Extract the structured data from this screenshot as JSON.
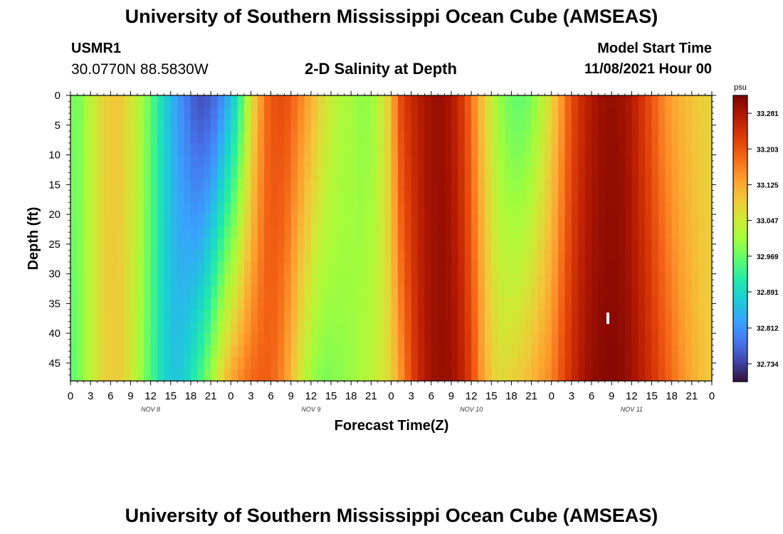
{
  "page": {
    "title": "University of Southern Mississippi Ocean Cube (AMSEAS)",
    "footer_title": "University of Southern Mississippi Ocean Cube (AMSEAS)",
    "station_id": "USMR1",
    "station_coords": "30.0770N  88.5830W",
    "chart_subtitle": "2-D Salinity at Depth",
    "model_start_label": "Model Start Time",
    "model_start_value": "11/08/2021 Hour 00"
  },
  "chart_data": {
    "type": "heatmap",
    "title": "2-D Salinity at Depth",
    "xlabel": "Forecast Time(Z)",
    "ylabel": "Depth (ft)",
    "x_range_hours": [
      0,
      96
    ],
    "ylim": [
      48,
      0
    ],
    "x_ticks": [
      "0",
      "3",
      "6",
      "9",
      "12",
      "15",
      "18",
      "21",
      "0",
      "3",
      "6",
      "9",
      "12",
      "15",
      "18",
      "21",
      "0",
      "3",
      "6",
      "9",
      "12",
      "15",
      "18",
      "21",
      "0",
      "3",
      "6",
      "9",
      "12",
      "15",
      "18",
      "21",
      "0"
    ],
    "x_tick_hours": [
      0,
      3,
      6,
      9,
      12,
      15,
      18,
      21,
      24,
      27,
      30,
      33,
      36,
      39,
      42,
      45,
      48,
      51,
      54,
      57,
      60,
      63,
      66,
      69,
      72,
      75,
      78,
      81,
      84,
      87,
      90,
      93,
      96
    ],
    "day_labels": [
      "NOV 8",
      "NOV 9",
      "NOV 10",
      "NOV 11"
    ],
    "day_label_hours": [
      12,
      36,
      60,
      84
    ],
    "y_ticks": [
      0,
      5,
      10,
      15,
      20,
      25,
      30,
      35,
      40,
      45
    ],
    "colorbar": {
      "unit": "psu",
      "vmin": 32.695,
      "vmax": 33.32,
      "tick_values": [
        33.281,
        33.203,
        33.125,
        33.047,
        32.969,
        32.891,
        32.812,
        32.734
      ],
      "tick_labels": [
        "33.281",
        "33.203",
        "33.125",
        "33.047",
        "32.969",
        "32.891",
        "32.812",
        "32.734"
      ]
    },
    "surface_profile": {
      "hours": [
        0,
        1,
        3,
        5,
        7,
        9,
        11,
        13,
        15,
        17,
        19,
        21,
        23,
        25,
        27,
        29,
        30,
        32,
        34,
        36,
        38,
        40,
        42,
        44,
        46,
        48,
        49,
        51,
        53,
        55,
        57,
        59,
        61,
        63,
        65,
        67,
        69,
        71,
        73,
        75,
        77,
        79,
        81,
        83,
        85,
        87,
        89,
        91,
        93,
        95,
        96
      ],
      "psu": [
        32.99,
        32.97,
        33.03,
        33.08,
        33.1,
        33.06,
        33.0,
        32.92,
        32.85,
        32.8,
        32.75,
        32.76,
        32.82,
        32.9,
        33.06,
        33.17,
        33.2,
        33.21,
        33.17,
        33.12,
        33.06,
        33.02,
        33.01,
        32.99,
        33.02,
        33.1,
        33.2,
        33.25,
        33.28,
        33.3,
        33.28,
        33.22,
        33.13,
        33.04,
        32.98,
        32.96,
        32.98,
        33.04,
        33.12,
        33.21,
        33.26,
        33.29,
        33.3,
        33.29,
        33.25,
        33.2,
        33.15,
        33.12,
        33.1,
        33.08,
        33.08
      ]
    },
    "bottom_profile": {
      "hours": [
        0,
        2,
        4,
        6,
        8,
        10,
        12,
        14,
        16,
        18,
        20,
        22,
        24,
        26,
        28,
        30,
        32,
        34,
        36,
        38,
        40,
        42,
        44,
        46,
        48,
        50,
        52,
        54,
        56,
        58,
        60,
        62,
        64,
        66,
        68,
        70,
        72,
        74,
        76,
        78,
        80,
        82,
        84,
        86,
        88,
        90,
        92,
        94,
        96
      ],
      "psu": [
        32.95,
        33.0,
        33.06,
        33.09,
        33.08,
        33.02,
        32.95,
        32.88,
        32.86,
        32.9,
        32.96,
        33.05,
        33.13,
        33.17,
        33.19,
        33.19,
        33.15,
        33.07,
        33.0,
        32.98,
        32.99,
        33.0,
        33.02,
        33.04,
        33.08,
        33.17,
        33.25,
        33.29,
        33.3,
        33.28,
        33.22,
        33.12,
        33.07,
        33.08,
        33.1,
        33.13,
        33.16,
        33.22,
        33.27,
        33.3,
        33.31,
        33.31,
        33.29,
        33.26,
        33.22,
        33.18,
        33.14,
        33.11,
        33.09
      ]
    }
  }
}
